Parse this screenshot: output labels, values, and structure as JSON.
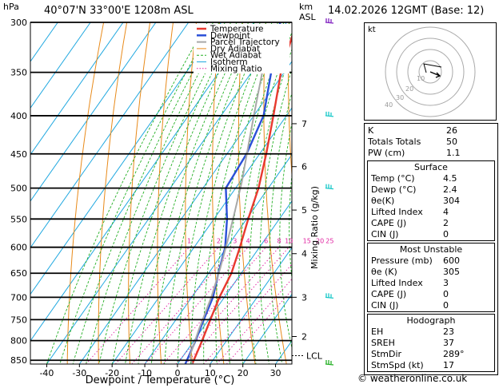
{
  "header": {
    "hpa_label": "hPa",
    "location": "40°07'N  33°00'E  1208m  ASL",
    "km_label": "km",
    "asl_label": "ASL",
    "datetime": "14.02.2026  12GMT  (Base: 12)"
  },
  "chart_data": {
    "type": "line",
    "title": "Skew-T log-P diagram",
    "xlabel": "Dewpoint / Temperature (°C)",
    "ylabel": "hPa",
    "xlim": [
      -45,
      35
    ],
    "ylim": [
      860,
      300
    ],
    "x_ticks": [
      "-40",
      "-30",
      "-20",
      "-10",
      "0",
      "10",
      "20",
      "30"
    ],
    "pressure_levels": [
      "300",
      "350",
      "400",
      "450",
      "500",
      "550",
      "600",
      "650",
      "700",
      "750",
      "800",
      "850"
    ],
    "km_ticks": [
      {
        "label": "7",
        "p": 410
      },
      {
        "label": "6",
        "p": 468
      },
      {
        "label": "5",
        "p": 535
      },
      {
        "label": "4",
        "p": 612
      },
      {
        "label": "3",
        "p": 700
      },
      {
        "label": "2",
        "p": 790
      }
    ],
    "lcl_label": "LCL",
    "lcl_pressure": 838,
    "mixing_ratio_axis_label": "Mixing Ratio (g/kg)",
    "mixing_ratio_labels": [
      "1",
      "2",
      "3",
      "4",
      "6",
      "8",
      "10",
      "15",
      "20",
      "25"
    ],
    "legend": [
      "Temperature",
      "Dewpoint",
      "Parcel Trajectory",
      "Dry Adiabat",
      "Wet Adiabat",
      "Isotherm",
      "Mixing Ratio"
    ],
    "colors": {
      "temperature": "#e8392f",
      "dewpoint": "#2b50d8",
      "parcel": "#a8a8a8",
      "dry_adiabat": "#e88a1a",
      "wet_adiabat": "#25b025",
      "isotherm": "#20a8e0",
      "mixing_ratio": "#e020a0",
      "wind": "#18c8c8"
    },
    "series": [
      {
        "name": "Temperature",
        "points": [
          [
            4.5,
            860
          ],
          [
            2.5,
            800
          ],
          [
            0.5,
            750
          ],
          [
            -1.5,
            700
          ],
          [
            -3,
            650
          ],
          [
            -6,
            600
          ],
          [
            -9.5,
            550
          ],
          [
            -13,
            500
          ],
          [
            -18,
            450
          ],
          [
            -24,
            400
          ],
          [
            -31,
            350
          ],
          [
            -37,
            300
          ]
        ]
      },
      {
        "name": "Dewpoint",
        "points": [
          [
            2.4,
            860
          ],
          [
            0.5,
            800
          ],
          [
            -1.5,
            750
          ],
          [
            -3.5,
            700
          ],
          [
            -7,
            650
          ],
          [
            -10.5,
            600
          ],
          [
            -16,
            550
          ],
          [
            -23,
            500
          ],
          [
            -24,
            450
          ],
          [
            -27,
            400
          ],
          [
            -34,
            350
          ],
          [
            -42,
            300
          ]
        ]
      },
      {
        "name": "Parcel Trajectory",
        "points": [
          [
            4.5,
            860
          ],
          [
            2.0,
            838
          ],
          [
            -1,
            770
          ],
          [
            -4,
            700
          ],
          [
            -7.5,
            640
          ],
          [
            -11,
            590
          ],
          [
            -15,
            540
          ],
          [
            -19.5,
            490
          ],
          [
            -24.5,
            445
          ],
          [
            -30,
            400
          ],
          [
            -36,
            355
          ],
          [
            -42,
            315
          ]
        ]
      }
    ],
    "wind_barbs_pressure": [
      860,
      700,
      500,
      400,
      300
    ]
  },
  "hodograph": {
    "unit_label": "kt",
    "ring_labels": [
      "10",
      "20",
      "30",
      "40"
    ]
  },
  "indices": {
    "rows": [
      {
        "label": "K",
        "value": "26"
      },
      {
        "label": "Totals Totals",
        "value": "50"
      },
      {
        "label": "PW (cm)",
        "value": "1.1"
      }
    ]
  },
  "surface": {
    "title": "Surface",
    "rows": [
      {
        "label": "Temp (°C)",
        "value": "4.5"
      },
      {
        "label": "Dewp (°C)",
        "value": "2.4"
      },
      {
        "label": "θe(K)",
        "value": "304"
      },
      {
        "label": "Lifted Index",
        "value": "4"
      },
      {
        "label": "CAPE (J)",
        "value": "2"
      },
      {
        "label": "CIN (J)",
        "value": "0"
      }
    ]
  },
  "unstable": {
    "title": "Most Unstable",
    "rows": [
      {
        "label": "Pressure (mb)",
        "value": "600"
      },
      {
        "label": "θe (K)",
        "value": "305"
      },
      {
        "label": "Lifted Index",
        "value": "3"
      },
      {
        "label": "CAPE (J)",
        "value": "0"
      },
      {
        "label": "CIN (J)",
        "value": "0"
      }
    ]
  },
  "hodo_stats": {
    "title": "Hodograph",
    "rows": [
      {
        "label": "EH",
        "value": "23"
      },
      {
        "label": "SREH",
        "value": "37"
      },
      {
        "label": "StmDir",
        "value": "289°"
      },
      {
        "label": "StmSpd (kt)",
        "value": "17"
      }
    ]
  },
  "footer": {
    "copyright": "© weatheronline.co.uk"
  }
}
